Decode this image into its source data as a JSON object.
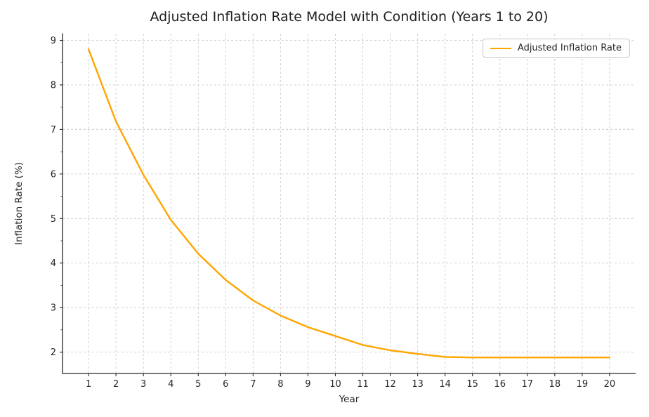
{
  "chart_data": {
    "type": "line",
    "title": "Adjusted Inflation Rate Model with Condition (Years 1 to 20)",
    "xlabel": "Year",
    "ylabel": "Inflation Rate (%)",
    "legend": [
      "Adjusted Inflation Rate"
    ],
    "legend_position": "upper right",
    "grid": true,
    "grid_style": "dashed",
    "x": [
      1,
      2,
      3,
      4,
      5,
      6,
      7,
      8,
      9,
      10,
      11,
      12,
      13,
      14,
      15,
      16,
      17,
      18,
      19,
      20
    ],
    "series": [
      {
        "name": "Adjusted Inflation Rate",
        "color": "#FFA500",
        "values": [
          8.8,
          7.18,
          5.98,
          4.97,
          4.21,
          3.62,
          3.16,
          2.82,
          2.56,
          2.36,
          2.16,
          2.04,
          1.96,
          1.89,
          1.88,
          1.88,
          1.88,
          1.88,
          1.88,
          1.88
        ]
      }
    ],
    "xticks": [
      1,
      2,
      3,
      4,
      5,
      6,
      7,
      8,
      9,
      10,
      11,
      12,
      13,
      14,
      15,
      16,
      17,
      18,
      19,
      20
    ],
    "yticks": [
      2,
      3,
      4,
      5,
      6,
      7,
      8,
      9
    ],
    "xlim": [
      0.05,
      20.95
    ],
    "ylim": [
      1.52,
      9.15
    ]
  },
  "style": {
    "line_color": "#FFA500",
    "grid_color": "#cccccc",
    "axis_color": "#262626",
    "text_color": "#262626",
    "legend_border_color": "#c9c9c9",
    "background_color": "#ffffff"
  }
}
